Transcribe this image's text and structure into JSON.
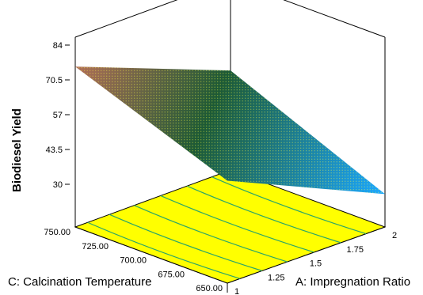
{
  "chart_data": {
    "type": "surface3d",
    "title": "",
    "zlabel": "Biodiesel Yield",
    "xlabel": "A: Impregnation Ratio",
    "ylabel": "C: Calcination Temperature",
    "z_ticks": [
      "84",
      "70.5",
      "57",
      "43.5",
      "30"
    ],
    "x_ticks": [
      "1",
      "1.25",
      "1.5",
      "1.75",
      "2"
    ],
    "y_ticks": [
      "650.00",
      "675.00",
      "700.00",
      "725.00",
      "750.00"
    ],
    "x_range": [
      1,
      2
    ],
    "y_range": [
      650,
      750
    ],
    "z_range": [
      30,
      84
    ],
    "surface_corners": [
      {
        "x": 1,
        "y": 750,
        "z": 84
      },
      {
        "x": 2,
        "y": 750,
        "z": 63
      },
      {
        "x": 1,
        "y": 650,
        "z": 64
      },
      {
        "x": 2,
        "y": 650,
        "z": 40
      }
    ],
    "floor_contours_x": [
      1.08,
      1.22,
      1.38,
      1.55,
      1.72,
      1.88
    ],
    "colors": {
      "floor": "#ffff00",
      "contour": "#2aa56a",
      "surface_high": "#c0705a",
      "surface_mid": "#1d5a35",
      "surface_low": "#1aa7ff",
      "mesh": "#ffff40"
    }
  }
}
